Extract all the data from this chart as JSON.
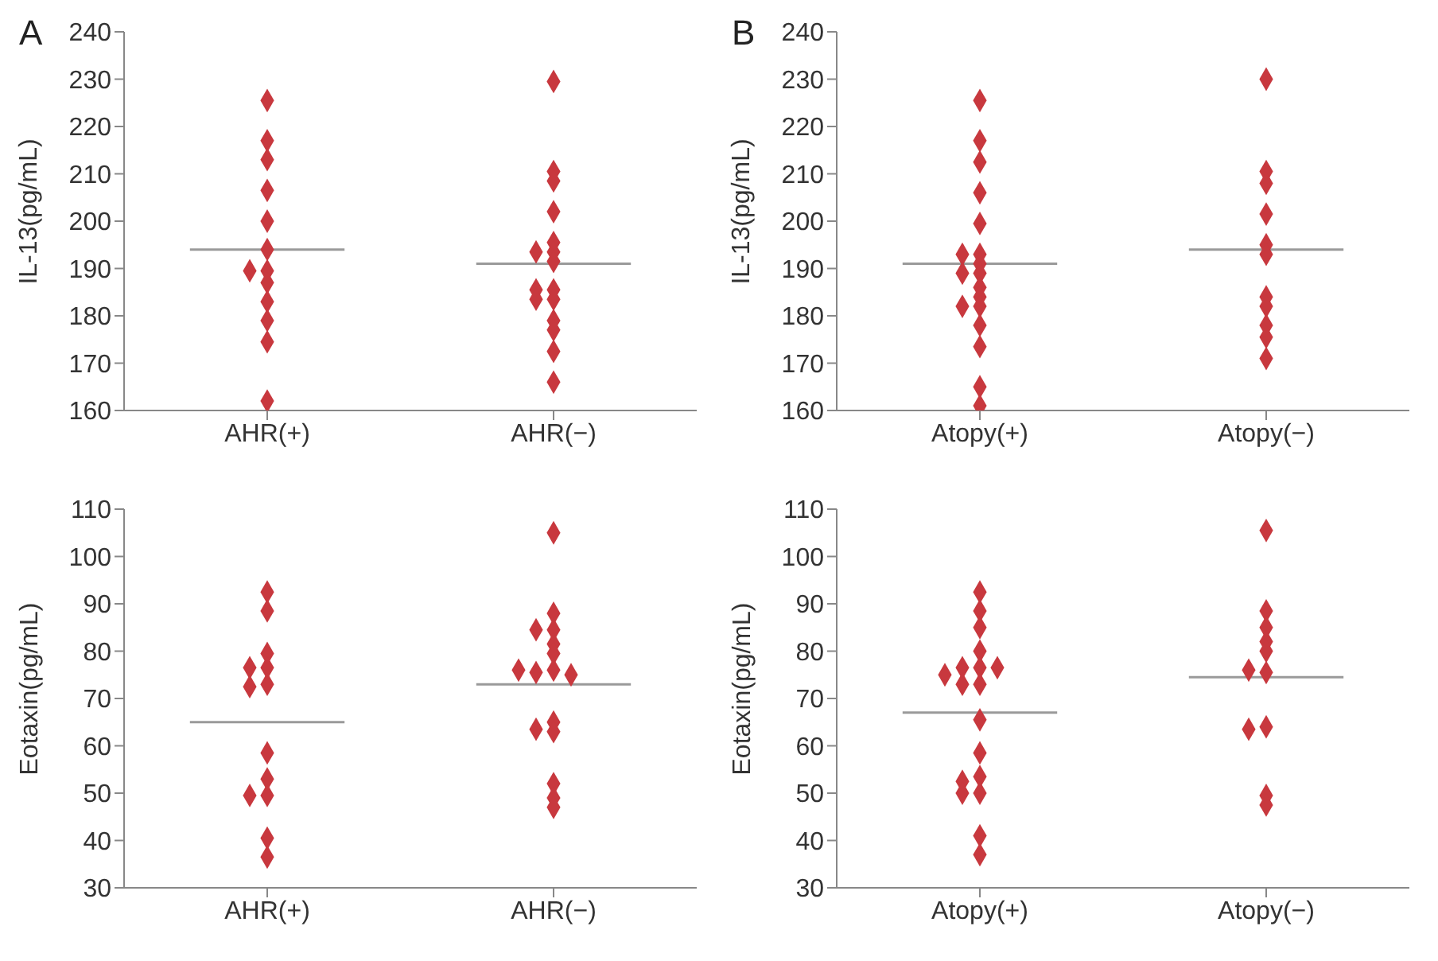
{
  "chart_data": [
    {
      "type": "scatter",
      "title": "A",
      "categories": [
        "AHR(+)",
        "AHR(−)"
      ],
      "ylabel": "IL-13(pg/mL)",
      "ylim": [
        160,
        240
      ],
      "yticks": [
        160,
        170,
        180,
        190,
        200,
        210,
        220,
        230,
        240
      ],
      "marker": "diamond",
      "grid": false,
      "series": [
        {
          "type": "scatter",
          "color": "#c8383e",
          "x": [
            "AHR(+)",
            "AHR(+)",
            "AHR(+)",
            "AHR(+)",
            "AHR(+)",
            "AHR(+)",
            "AHR(+)",
            "AHR(+)",
            "AHR(+)",
            "AHR(+)",
            "AHR(+)",
            "AHR(+)",
            "AHR(+)",
            "AHR(−)",
            "AHR(−)",
            "AHR(−)",
            "AHR(−)",
            "AHR(−)",
            "AHR(−)",
            "AHR(−)",
            "AHR(−)",
            "AHR(−)",
            "AHR(−)",
            "AHR(−)",
            "AHR(−)",
            "AHR(−)",
            "AHR(−)",
            "AHR(−)",
            "AHR(−)"
          ],
          "values": [
            225.5,
            217,
            213,
            206.5,
            200,
            194,
            189.5,
            189.5,
            187,
            183,
            179,
            174.5,
            162,
            229.5,
            210.5,
            208.5,
            202,
            195.5,
            193.5,
            193.5,
            191.5,
            185.5,
            185.5,
            183.5,
            183.5,
            179,
            177,
            172.5,
            166
          ]
        }
      ],
      "ref_lines": [
        {
          "axis": "y",
          "value": 194,
          "color": "#9a9a9a"
        },
        {
          "axis": "y",
          "value": 191,
          "color": "#9a9a9a"
        }
      ]
    },
    {
      "type": "scatter",
      "title": "B",
      "categories": [
        "Atopy(+)",
        "Atopy(−)"
      ],
      "ylabel": "IL-13(pg/mL)",
      "ylim": [
        160,
        240
      ],
      "yticks": [
        160,
        170,
        180,
        190,
        200,
        210,
        220,
        230,
        240
      ],
      "marker": "diamond",
      "grid": false,
      "series": [
        {
          "type": "scatter",
          "color": "#c8383e",
          "x": [
            "Atopy(+)",
            "Atopy(+)",
            "Atopy(+)",
            "Atopy(+)",
            "Atopy(+)",
            "Atopy(+)",
            "Atopy(+)",
            "Atopy(+)",
            "Atopy(+)",
            "Atopy(+)",
            "Atopy(+)",
            "Atopy(+)",
            "Atopy(+)",
            "Atopy(+)",
            "Atopy(+)",
            "Atopy(+)",
            "Atopy(+)",
            "Atopy(+)",
            "Atopy(−)",
            "Atopy(−)",
            "Atopy(−)",
            "Atopy(−)",
            "Atopy(−)",
            "Atopy(−)",
            "Atopy(−)",
            "Atopy(−)",
            "Atopy(−)",
            "Atopy(−)",
            "Atopy(−)"
          ],
          "values": [
            225.5,
            217,
            212.5,
            206,
            199.5,
            193,
            193,
            191,
            189,
            189,
            186,
            184,
            182,
            182,
            178,
            173.5,
            165,
            161,
            230,
            210.5,
            208,
            201.5,
            195,
            193,
            184,
            182,
            178,
            175.5,
            171
          ]
        }
      ],
      "ref_lines": [
        {
          "axis": "y",
          "value": 191,
          "color": "#9a9a9a"
        },
        {
          "axis": "y",
          "value": 194,
          "color": "#9a9a9a"
        }
      ]
    },
    {
      "type": "scatter",
      "categories": [
        "AHR(+)",
        "AHR(−)"
      ],
      "ylabel": "Eotaxin(pg/mL)",
      "ylim": [
        30,
        110
      ],
      "yticks": [
        30,
        40,
        50,
        60,
        70,
        80,
        90,
        100,
        110
      ],
      "marker": "diamond",
      "grid": false,
      "series": [
        {
          "type": "scatter",
          "color": "#c8383e",
          "x": [
            "AHR(+)",
            "AHR(+)",
            "AHR(+)",
            "AHR(+)",
            "AHR(+)",
            "AHR(+)",
            "AHR(+)",
            "AHR(+)",
            "AHR(+)",
            "AHR(+)",
            "AHR(+)",
            "AHR(+)",
            "AHR(+)",
            "AHR(−)",
            "AHR(−)",
            "AHR(−)",
            "AHR(−)",
            "AHR(−)",
            "AHR(−)",
            "AHR(−)",
            "AHR(−)",
            "AHR(−)",
            "AHR(−)",
            "AHR(−)",
            "AHR(−)",
            "AHR(−)",
            "AHR(−)",
            "AHR(−)",
            "AHR(−)"
          ],
          "values": [
            92.5,
            88.5,
            79.5,
            76.5,
            76.5,
            73,
            72.5,
            58.5,
            53,
            49.5,
            49.5,
            40.5,
            36.5,
            105,
            88,
            84.5,
            84.5,
            81.5,
            79.5,
            76,
            75.5,
            75,
            76,
            65,
            63,
            63.5,
            52,
            49,
            47
          ]
        }
      ],
      "ref_lines": [
        {
          "axis": "y",
          "value": 65,
          "color": "#9a9a9a"
        },
        {
          "axis": "y",
          "value": 73,
          "color": "#9a9a9a"
        }
      ]
    },
    {
      "type": "scatter",
      "categories": [
        "Atopy(+)",
        "Atopy(−)"
      ],
      "ylabel": "Eotaxin(pg/mL)",
      "ylim": [
        30,
        110
      ],
      "yticks": [
        30,
        40,
        50,
        60,
        70,
        80,
        90,
        100,
        110
      ],
      "marker": "diamond",
      "grid": false,
      "series": [
        {
          "type": "scatter",
          "color": "#c8383e",
          "x": [
            "Atopy(+)",
            "Atopy(+)",
            "Atopy(+)",
            "Atopy(+)",
            "Atopy(+)",
            "Atopy(+)",
            "Atopy(+)",
            "Atopy(+)",
            "Atopy(+)",
            "Atopy(+)",
            "Atopy(+)",
            "Atopy(+)",
            "Atopy(+)",
            "Atopy(+)",
            "Atopy(+)",
            "Atopy(+)",
            "Atopy(+)",
            "Atopy(+)",
            "Atopy(−)",
            "Atopy(−)",
            "Atopy(−)",
            "Atopy(−)",
            "Atopy(−)",
            "Atopy(−)",
            "Atopy(−)",
            "Atopy(−)",
            "Atopy(−)",
            "Atopy(−)",
            "Atopy(−)"
          ],
          "values": [
            92.5,
            88.5,
            85,
            80,
            76.5,
            76.5,
            76.5,
            75,
            73,
            73,
            65.5,
            58.5,
            53.5,
            52.5,
            50,
            50,
            41,
            37,
            105.5,
            88.5,
            85,
            82,
            80,
            75.5,
            76,
            64,
            63.5,
            49.5,
            47.5
          ]
        }
      ],
      "ref_lines": [
        {
          "axis": "y",
          "value": 67,
          "color": "#9a9a9a"
        },
        {
          "axis": "y",
          "value": 74.5,
          "color": "#9a9a9a"
        }
      ]
    }
  ]
}
